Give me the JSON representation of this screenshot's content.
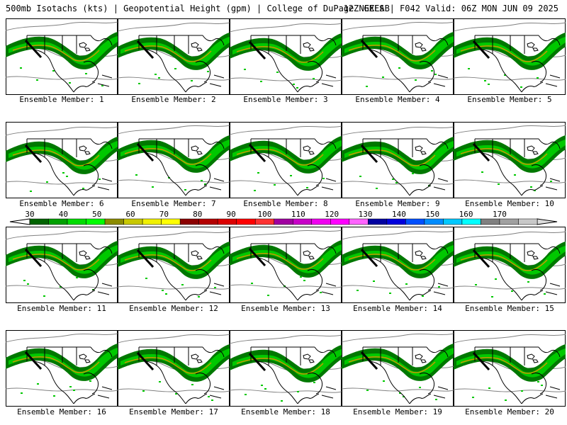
{
  "header": {
    "title": "500mb Isotachs (kts) | Geopotential Height (gpm) | College of DuPage NEXLAB",
    "run_info": "12Z GEFS | F042 Valid: 06Z MON JUN 09 2025"
  },
  "members": [
    "Ensemble Member: 1",
    "Ensemble Member: 2",
    "Ensemble Member: 3",
    "Ensemble Member: 4",
    "Ensemble Member: 5",
    "Ensemble Member: 6",
    "Ensemble Member: 7",
    "Ensemble Member: 8",
    "Ensemble Member: 9",
    "Ensemble Member: 10",
    "Ensemble Member: 11",
    "Ensemble Member: 12",
    "Ensemble Member: 13",
    "Ensemble Member: 14",
    "Ensemble Member: 15",
    "Ensemble Member: 16",
    "Ensemble Member: 17",
    "Ensemble Member: 18",
    "Ensemble Member: 19",
    "Ensemble Member: 20"
  ],
  "colorbar": {
    "labels": [
      "30",
      "40",
      "50",
      "60",
      "70",
      "80",
      "90",
      "100",
      "110",
      "120",
      "130",
      "140",
      "150",
      "160",
      "170"
    ],
    "colors": [
      "#006400",
      "#00a000",
      "#00dc00",
      "#00ff00",
      "#8c8c00",
      "#c8c800",
      "#f0f000",
      "#ffff00",
      "#8c0000",
      "#b40000",
      "#dc0000",
      "#ff0000",
      "#ff3232",
      "#a000a0",
      "#c800c8",
      "#f000f0",
      "#ff00ff",
      "#ff64ff",
      "#0000a0",
      "#0000dc",
      "#0050ff",
      "#008cff",
      "#00c8ff",
      "#00ffff",
      "#808080",
      "#a0a0a0",
      "#c8c8c8"
    ]
  },
  "colors": {
    "jet_dark": "#007800",
    "jet_mid": "#00c800",
    "jet_core": "#c89600",
    "height_contour": "#808080",
    "coastline": "#000000"
  }
}
